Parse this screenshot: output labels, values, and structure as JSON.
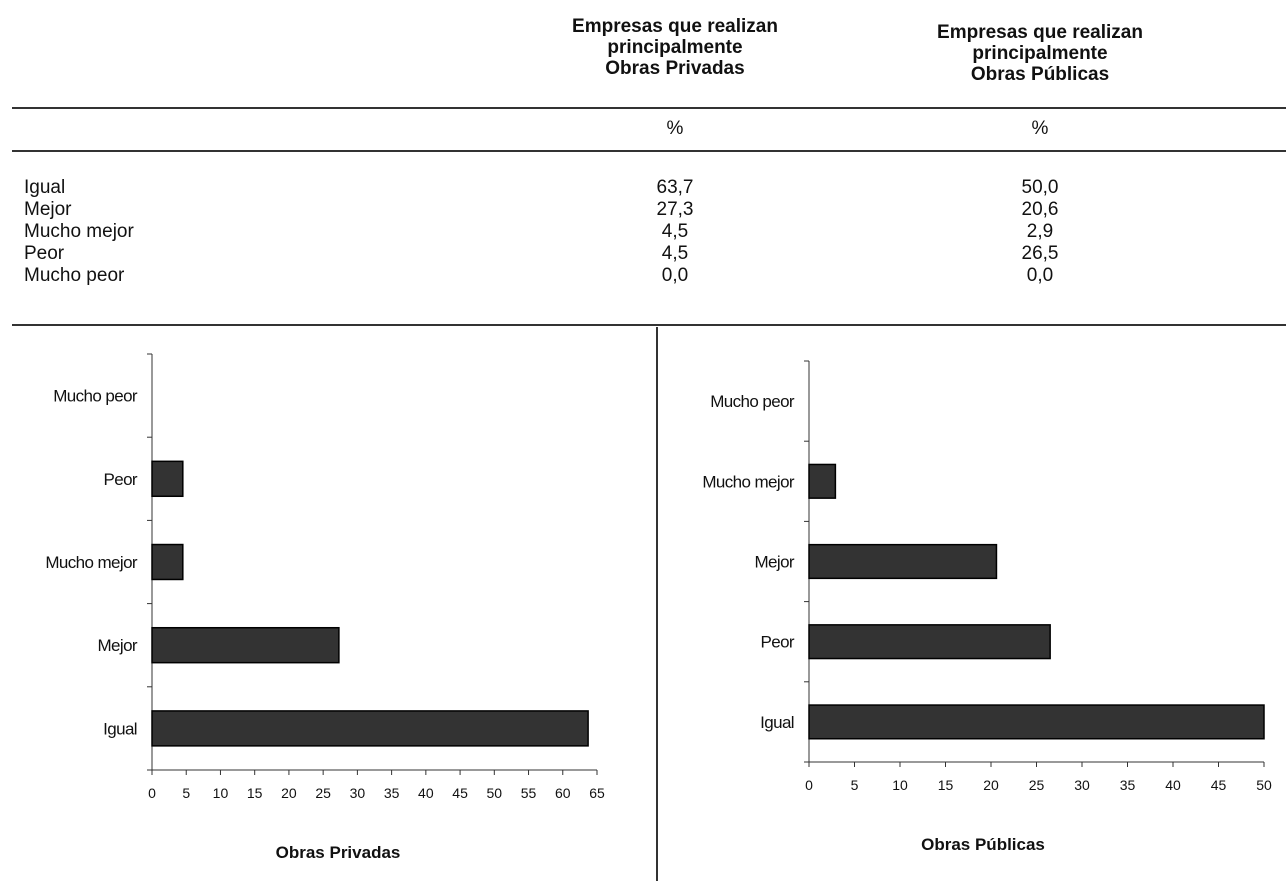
{
  "table": {
    "headers": [
      [
        "Empresas que realizan",
        "principalmente",
        "Obras Privadas"
      ],
      [
        "Empresas que realizan",
        "principalmente",
        "Obras Públicas"
      ]
    ],
    "unit_labels": [
      "%",
      "%"
    ],
    "rows": [
      {
        "label": "Igual",
        "privadas": "63,7",
        "publicas": "50,0"
      },
      {
        "label": "Mejor",
        "privadas": "27,3",
        "publicas": "20,6"
      },
      {
        "label": "Mucho mejor",
        "privadas": "4,5",
        "publicas": "2,9"
      },
      {
        "label": "Peor",
        "privadas": "4,5",
        "publicas": "26,5"
      },
      {
        "label": "Mucho peor",
        "privadas": "0,0",
        "publicas": "0,0"
      }
    ]
  },
  "chart_data": [
    {
      "type": "bar",
      "orientation": "horizontal",
      "title": "Obras Privadas",
      "categories": [
        "Igual",
        "Mejor",
        "Mucho mejor",
        "Peor",
        "Mucho peor"
      ],
      "values": [
        63.7,
        27.3,
        4.5,
        4.5,
        0.0
      ],
      "xlim": [
        0,
        65
      ],
      "xticks": [
        0,
        5,
        10,
        15,
        20,
        25,
        30,
        35,
        40,
        45,
        50,
        55,
        60,
        65
      ],
      "bar_color": "#333333",
      "grid": false
    },
    {
      "type": "bar",
      "orientation": "horizontal",
      "title": "Obras Públicas",
      "categories": [
        "Igual",
        "Peor",
        "Mejor",
        "Mucho mejor",
        "Mucho peor"
      ],
      "values": [
        50.0,
        26.5,
        20.6,
        2.9,
        0.0
      ],
      "xlim": [
        0,
        50
      ],
      "xticks": [
        0,
        5,
        10,
        15,
        20,
        25,
        30,
        35,
        40,
        45,
        50
      ],
      "bar_color": "#333333",
      "grid": false
    }
  ]
}
